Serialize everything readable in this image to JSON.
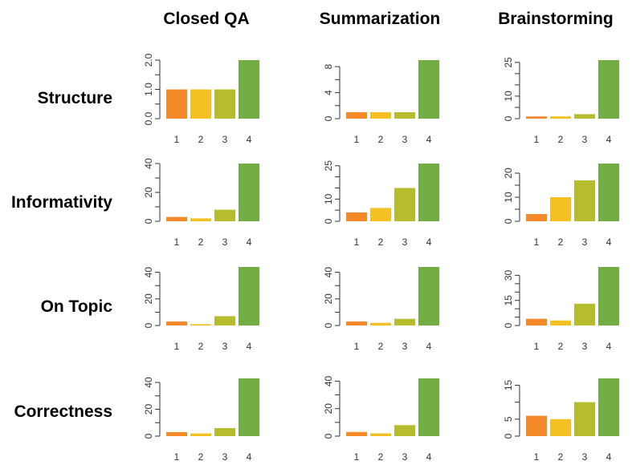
{
  "columns": [
    "Closed QA",
    "Summarization",
    "Brainstorming"
  ],
  "rows": [
    "Structure",
    "Informativity",
    "On Topic",
    "Correctness"
  ],
  "colors": [
    "#f4892a",
    "#f5c024",
    "#b5bd2f",
    "#71ad43"
  ],
  "chart_data": [
    {
      "type": "bar",
      "row": "Structure",
      "col": "Closed QA",
      "categories": [
        "1",
        "2",
        "3",
        "4"
      ],
      "values": [
        1,
        1,
        1,
        2
      ],
      "ylim": [
        0,
        2
      ],
      "yticks": [
        "0.0",
        "1.0",
        "2.0"
      ],
      "ytick_values": [
        0,
        1,
        2
      ],
      "minor_ticks": [
        0.5,
        1.5
      ]
    },
    {
      "type": "bar",
      "row": "Structure",
      "col": "Summarization",
      "categories": [
        "1",
        "2",
        "3",
        "4"
      ],
      "values": [
        1,
        1,
        1,
        9
      ],
      "ylim": [
        0,
        9
      ],
      "yticks": [
        "0",
        "4",
        "8"
      ],
      "ytick_values": [
        0,
        4,
        8
      ],
      "minor_ticks": [
        2,
        6
      ]
    },
    {
      "type": "bar",
      "row": "Structure",
      "col": "Brainstorming",
      "categories": [
        "1",
        "2",
        "3",
        "4"
      ],
      "values": [
        1,
        1,
        2,
        26
      ],
      "ylim": [
        0,
        26
      ],
      "yticks": [
        "0",
        "10",
        "25"
      ],
      "ytick_values": [
        0,
        10,
        25
      ],
      "minor_ticks": [
        5,
        15,
        20
      ]
    },
    {
      "type": "bar",
      "row": "Informativity",
      "col": "Closed QA",
      "categories": [
        "1",
        "2",
        "3",
        "4"
      ],
      "values": [
        3,
        2,
        8,
        40
      ],
      "ylim": [
        0,
        40
      ],
      "yticks": [
        "0",
        "20",
        "40"
      ],
      "ytick_values": [
        0,
        20,
        40
      ],
      "minor_ticks": [
        10,
        30
      ]
    },
    {
      "type": "bar",
      "row": "Informativity",
      "col": "Summarization",
      "categories": [
        "1",
        "2",
        "3",
        "4"
      ],
      "values": [
        4,
        6,
        15,
        26
      ],
      "ylim": [
        0,
        26
      ],
      "yticks": [
        "0",
        "10",
        "25"
      ],
      "ytick_values": [
        0,
        10,
        25
      ],
      "minor_ticks": [
        5,
        15,
        20
      ]
    },
    {
      "type": "bar",
      "row": "Informativity",
      "col": "Brainstorming",
      "categories": [
        "1",
        "2",
        "3",
        "4"
      ],
      "values": [
        3,
        10,
        17,
        24
      ],
      "ylim": [
        0,
        24
      ],
      "yticks": [
        "0",
        "10",
        "20"
      ],
      "ytick_values": [
        0,
        10,
        20
      ],
      "minor_ticks": [
        5,
        15
      ]
    },
    {
      "type": "bar",
      "row": "On Topic",
      "col": "Closed QA",
      "categories": [
        "1",
        "2",
        "3",
        "4"
      ],
      "values": [
        3,
        1,
        7,
        44
      ],
      "ylim": [
        0,
        44
      ],
      "yticks": [
        "0",
        "20",
        "40"
      ],
      "ytick_values": [
        0,
        20,
        40
      ],
      "minor_ticks": [
        10,
        30
      ]
    },
    {
      "type": "bar",
      "row": "On Topic",
      "col": "Summarization",
      "categories": [
        "1",
        "2",
        "3",
        "4"
      ],
      "values": [
        3,
        2,
        5,
        44
      ],
      "ylim": [
        0,
        44
      ],
      "yticks": [
        "0",
        "20",
        "40"
      ],
      "ytick_values": [
        0,
        20,
        40
      ],
      "minor_ticks": [
        10,
        30
      ]
    },
    {
      "type": "bar",
      "row": "On Topic",
      "col": "Brainstorming",
      "categories": [
        "1",
        "2",
        "3",
        "4"
      ],
      "values": [
        4,
        3,
        13,
        35
      ],
      "ylim": [
        0,
        35
      ],
      "yticks": [
        "0",
        "15",
        "30"
      ],
      "ytick_values": [
        0,
        15,
        30
      ],
      "minor_ticks": [
        5,
        10,
        20,
        25
      ]
    },
    {
      "type": "bar",
      "row": "Correctness",
      "col": "Closed QA",
      "categories": [
        "1",
        "2",
        "3",
        "4"
      ],
      "values": [
        3,
        2,
        6,
        43
      ],
      "ylim": [
        0,
        43
      ],
      "yticks": [
        "0",
        "20",
        "40"
      ],
      "ytick_values": [
        0,
        20,
        40
      ],
      "minor_ticks": [
        10,
        30
      ]
    },
    {
      "type": "bar",
      "row": "Correctness",
      "col": "Summarization",
      "categories": [
        "1",
        "2",
        "3",
        "4"
      ],
      "values": [
        3,
        2,
        8,
        42
      ],
      "ylim": [
        0,
        42
      ],
      "yticks": [
        "0",
        "20",
        "40"
      ],
      "ytick_values": [
        0,
        20,
        40
      ],
      "minor_ticks": [
        10,
        30
      ]
    },
    {
      "type": "bar",
      "row": "Correctness",
      "col": "Brainstorming",
      "categories": [
        "1",
        "2",
        "3",
        "4"
      ],
      "values": [
        6,
        5,
        10,
        17
      ],
      "ylim": [
        0,
        17
      ],
      "yticks": [
        "0",
        "5",
        "15"
      ],
      "ytick_values": [
        0,
        5,
        15
      ],
      "minor_ticks": [
        10
      ]
    }
  ]
}
